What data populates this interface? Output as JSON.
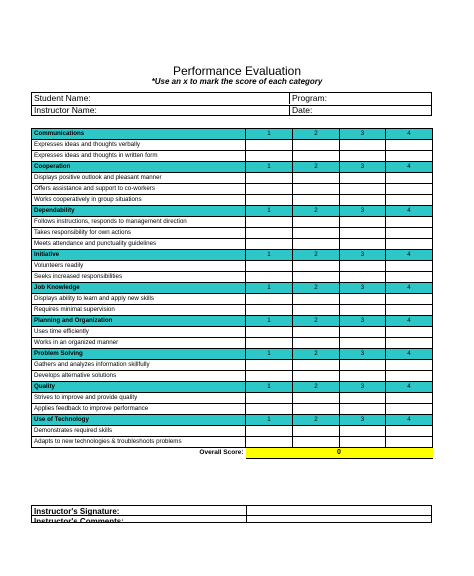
{
  "title": "Performance Evaluation",
  "subtitle": "*Use an x to mark the score of each category",
  "info": {
    "student_name": "Student Name:",
    "program": "Program:",
    "instructor_name": "Instructor Name:",
    "date": "Date:"
  },
  "scale": [
    "1",
    "2",
    "3",
    "4"
  ],
  "categories": [
    {
      "name": "Communications",
      "items": [
        "Expresses ideas and thoughts verbally",
        "Expresses ideas and thoughts in written form"
      ]
    },
    {
      "name": "Cooperation",
      "items": [
        "Displays positive outlook and pleasant manner",
        "Offers assistance and support to co-workers",
        "Works cooperatively in group situations"
      ]
    },
    {
      "name": "Dependability",
      "items": [
        "Follows instructions, responds to management direction",
        "Takes responsibility for own actions",
        "Meets attendance and punctuality guidelines"
      ]
    },
    {
      "name": "Initiative",
      "items": [
        "Volunteers readily",
        "Seeks increased responsibilities"
      ]
    },
    {
      "name": "Job Knowledge",
      "items": [
        "Displays ability to learn and apply new skills",
        "Requires minimal supervision"
      ]
    },
    {
      "name": "Planning and Organization",
      "items": [
        "Uses time efficiently",
        "Works in an organized manner"
      ]
    },
    {
      "name": "Problem Solving",
      "items": [
        "Gathers and analyzes information skillfully",
        "Develops alternative solutions"
      ]
    },
    {
      "name": "Quality",
      "items": [
        "Strives to improve and provide quality",
        "Applies feedback to improve performance"
      ]
    },
    {
      "name": "Use of Technology",
      "items": [
        "Demonstrates required skills",
        "Adapts to new technologies & troubleshoots problems"
      ]
    }
  ],
  "overall_score": {
    "label": "Overall Score:",
    "value": "0"
  },
  "signature": {
    "label": "Instructor's Signature:",
    "label2": "Instructor's Comments:"
  },
  "colors": {
    "category_fill": "#2ec7c7",
    "score_fill": "#ffff00"
  }
}
